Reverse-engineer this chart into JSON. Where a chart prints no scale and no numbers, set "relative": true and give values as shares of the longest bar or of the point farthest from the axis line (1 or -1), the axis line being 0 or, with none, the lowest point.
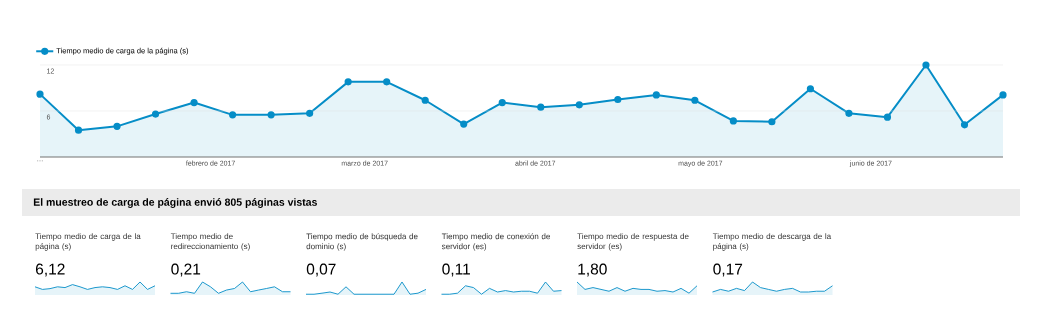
{
  "chart_data": [
    {
      "type": "line",
      "x": [
        "2017-01-01",
        "2017-01-08",
        "2017-01-15",
        "2017-01-22",
        "2017-01-29",
        "2017-02-05",
        "2017-02-12",
        "2017-02-19",
        "2017-02-26",
        "2017-03-05",
        "2017-03-12",
        "2017-03-19",
        "2017-03-26",
        "2017-04-02",
        "2017-04-09",
        "2017-04-16",
        "2017-04-23",
        "2017-04-30",
        "2017-05-07",
        "2017-05-14",
        "2017-05-21",
        "2017-05-28",
        "2017-06-04",
        "2017-06-11",
        "2017-06-18",
        "2017-06-25"
      ],
      "series": [
        {
          "name": "Tiempo medio de carga de la página (s)",
          "type": "area",
          "color": "#058dc7",
          "values": [
            8.2,
            3.5,
            4.0,
            5.6,
            7.1,
            5.5,
            5.5,
            5.7,
            9.8,
            9.8,
            7.4,
            4.3,
            7.1,
            6.5,
            6.8,
            7.5,
            8.1,
            7.4,
            4.7,
            4.6,
            8.9,
            5.7,
            5.2,
            12.0,
            4.2,
            8.1
          ]
        }
      ],
      "xlim": [
        "2017-01-01",
        "2017-06-25"
      ],
      "xticks": [
        {
          "value": "2017-01-01",
          "label": "…"
        },
        {
          "value": "2017-02-01",
          "label": "febrero de 2017"
        },
        {
          "value": "2017-03-01",
          "label": "marzo de 2017"
        },
        {
          "value": "2017-04-01",
          "label": "abril de 2017"
        },
        {
          "value": "2017-05-01",
          "label": "mayo de 2017"
        },
        {
          "value": "2017-06-01",
          "label": "junio de 2017"
        }
      ],
      "ylim": [
        0,
        12
      ],
      "yticks": [
        6,
        12
      ],
      "grid": "y",
      "legend": "top left",
      "marker": "circle",
      "line_style": "solid"
    },
    {
      "type": "other",
      "title": "El muestreo de carga de página envió 805 páginas vistas"
    },
    {
      "type": "area",
      "relative": true,
      "title": "Tiempo medio de carga de la página (s)",
      "annotations": [
        "6,12"
      ],
      "color": "#058dc7",
      "categories": [
        null,
        null,
        null,
        null,
        null,
        null,
        null,
        null,
        null,
        null,
        null,
        null,
        null,
        null,
        null,
        null,
        null
      ],
      "values": [
        0.63,
        0.43,
        0.49,
        0.63,
        0.57,
        0.8,
        0.63,
        0.43,
        0.57,
        0.63,
        0.57,
        0.43,
        0.71,
        0.43,
        1,
        0.43,
        0.71
      ]
    },
    {
      "type": "area",
      "relative": true,
      "title": "Tiempo medio de redireccionamiento (s)",
      "annotations": [
        "0,21"
      ],
      "color": "#058dc7",
      "categories": [
        null,
        null,
        null,
        null,
        null,
        null,
        null,
        null,
        null,
        null,
        null,
        null,
        null,
        null,
        null,
        null
      ],
      "values": [
        0.13,
        0.13,
        0.25,
        0.13,
        1,
        0.63,
        0.13,
        0.38,
        0.5,
        1,
        0.25,
        0.38,
        0.5,
        0.63,
        0.25,
        0.25
      ]
    },
    {
      "type": "area",
      "relative": true,
      "title": "Tiempo medio de búsqueda de dominio (s)",
      "annotations": [
        "0,07"
      ],
      "color": "#058dc7",
      "categories": [
        null,
        null,
        null,
        null,
        null,
        null,
        null,
        null,
        null,
        null,
        null,
        null,
        null,
        null,
        null,
        null
      ],
      "values": [
        0.06,
        0.06,
        0.14,
        0.23,
        0.06,
        0.63,
        0.06,
        0.06,
        0.06,
        0.06,
        0.06,
        0.06,
        1,
        0.06,
        0.14,
        0.43
      ]
    },
    {
      "type": "area",
      "relative": true,
      "title": "Tiempo medio de conexión de servidor (es)",
      "annotations": [
        "0,11"
      ],
      "color": "#058dc7",
      "categories": [
        null,
        null,
        null,
        null,
        null,
        null,
        null,
        null,
        null,
        null,
        null,
        null,
        null,
        null,
        null,
        null
      ],
      "values": [
        0.06,
        0.06,
        0.14,
        0.71,
        0.57,
        0.06,
        0.51,
        0.23,
        0.34,
        0.23,
        0.29,
        0.29,
        0.14,
        1,
        0.29,
        0.34
      ]
    },
    {
      "type": "area",
      "relative": true,
      "title": "Tiempo medio de respuesta de servidor (es)",
      "annotations": [
        "1,80"
      ],
      "color": "#058dc7",
      "categories": [
        null,
        null,
        null,
        null,
        null,
        null,
        null,
        null,
        null,
        null,
        null,
        null,
        null,
        null,
        null,
        null
      ],
      "values": [
        1,
        0.43,
        0.57,
        0.43,
        0.29,
        0.57,
        0.29,
        0.51,
        0.43,
        0.43,
        0.29,
        0.34,
        0.23,
        0.51,
        0.14,
        0.71
      ]
    },
    {
      "type": "area",
      "relative": true,
      "title": "Tiempo medio de descarga de la página (s)",
      "annotations": [
        "0,17"
      ],
      "color": "#058dc7",
      "categories": [
        null,
        null,
        null,
        null,
        null,
        null,
        null,
        null,
        null,
        null,
        null,
        null,
        null,
        null,
        null,
        null
      ],
      "values": [
        0.23,
        0.43,
        0.29,
        0.51,
        0.34,
        1,
        0.57,
        0.43,
        0.29,
        0.43,
        0.51,
        0.23,
        0.23,
        0.29,
        0.29,
        0.71
      ]
    }
  ]
}
